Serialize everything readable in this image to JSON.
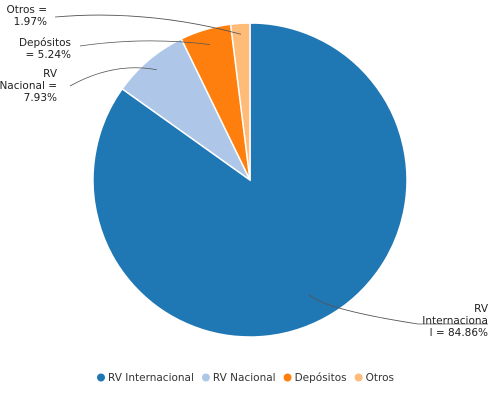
{
  "chart_data": {
    "type": "pie",
    "title": "",
    "slices": [
      {
        "name": "RV Internacional",
        "value": 84.86,
        "label_lines": [
          "RV",
          "Internaciona",
          "l = 84.86%"
        ],
        "color": "#1f77b4"
      },
      {
        "name": "RV Nacional",
        "value": 7.93,
        "label_lines": [
          "RV",
          "Nacional =",
          "7.93%"
        ],
        "color": "#aec7e8"
      },
      {
        "name": "Depósitos",
        "value": 5.24,
        "label_lines": [
          "Depósitos",
          "= 5.24%"
        ],
        "color": "#ff7f0e"
      },
      {
        "name": "Otros",
        "value": 1.97,
        "label_lines": [
          "Otros =",
          "1.97%"
        ],
        "color": "#ffbb78"
      }
    ],
    "legend": {
      "position": "bottom-center",
      "entries": [
        "RV Internacional",
        "RV Nacional",
        "Depósitos",
        "Otros"
      ]
    }
  }
}
